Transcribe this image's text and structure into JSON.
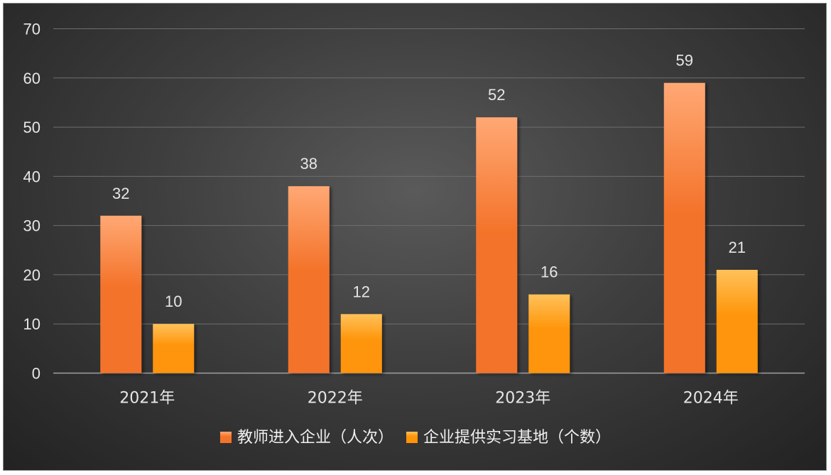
{
  "chart_data": {
    "type": "bar",
    "categories": [
      "2021年",
      "2022年",
      "2023年",
      "2024年"
    ],
    "series": [
      {
        "name": "教师进入企业（人次）",
        "values": [
          32,
          38,
          52,
          59
        ]
      },
      {
        "name": "企业提供实习基地（个数）",
        "values": [
          10,
          12,
          16,
          21
        ]
      }
    ],
    "y_ticks": [
      "0",
      "10",
      "20",
      "30",
      "40",
      "50",
      "60",
      "70"
    ],
    "ylim": [
      0,
      70
    ],
    "grid": true,
    "legend_position": "bottom",
    "data_labels": true,
    "colors": {
      "series_1": "#f4732a",
      "series_1_light": "#ffa874",
      "series_2": "#ff9408",
      "series_2_light": "#ffc15a",
      "background": "#3a3a3a",
      "gridline": "#6e6e6e",
      "axis": "#a0a0a0",
      "text": "#e6e6e6"
    }
  }
}
